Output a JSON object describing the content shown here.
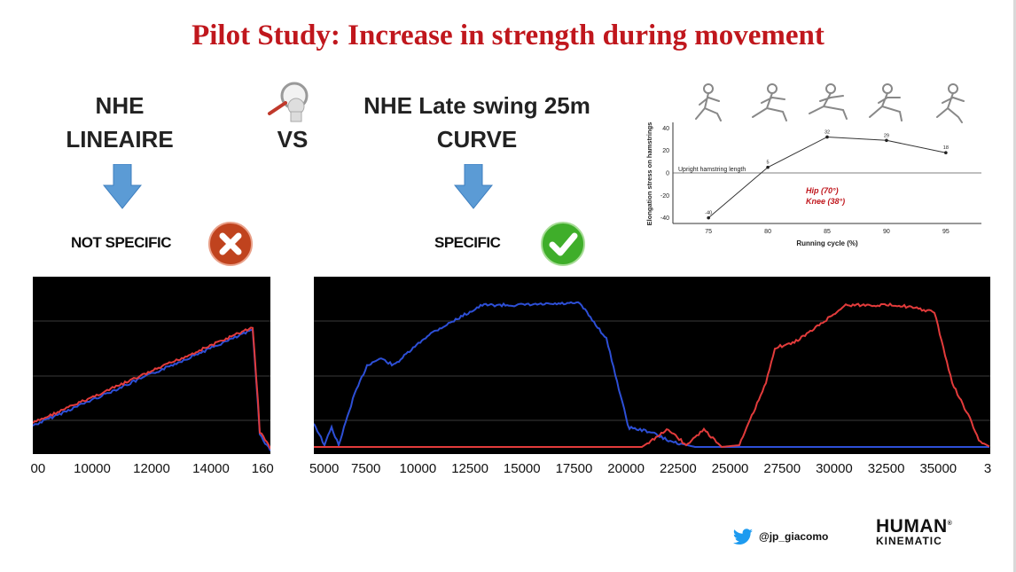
{
  "title": "Pilot Study: Increase in strength during movement",
  "left": {
    "label_line1": "NHE",
    "label_line2": "LINEAIRE",
    "verdict": "NOT SPECIFIC",
    "verdict_icon": "cross-circle-icon",
    "verdict_color": "#c0431e"
  },
  "vs": "VS",
  "right": {
    "label_line1": "NHE Late swing 25m",
    "label_line2": "CURVE",
    "verdict": "SPECIFIC",
    "verdict_icon": "check-circle-icon",
    "verdict_color": "#3fae2a"
  },
  "arrow_color": "#5b9bd5",
  "figure": {
    "ylabel": "Elongation stress on hamstrings",
    "xlabel": "Running cycle (%)",
    "reference_label": "Upright hamstring length",
    "annotation_line1": "Hip (70°)",
    "annotation_line2": "Knee (38°)",
    "y_ticks": [
      "40",
      "20",
      "0",
      "-20",
      "-40"
    ],
    "x_ticks": [
      "75",
      "80",
      "85",
      "90",
      "95"
    ],
    "chart_data": {
      "type": "line",
      "x": [
        75,
        80,
        85,
        90,
        95
      ],
      "values": [
        -40,
        5,
        32,
        29,
        18
      ],
      "point_labels": [
        "-40",
        "5",
        "32",
        "29",
        "18"
      ],
      "ylim": [
        -45,
        45
      ],
      "xlim": [
        72,
        98
      ]
    }
  },
  "chart_left": {
    "x_ticks": [
      "00",
      "10000",
      "12000",
      "14000",
      "160"
    ],
    "chart_data": {
      "type": "line",
      "x_range": [
        8000,
        16200
      ],
      "series": [
        {
          "name": "red",
          "color": "#e23b3b"
        },
        {
          "name": "blue",
          "color": "#2d4fd6"
        }
      ]
    }
  },
  "chart_right": {
    "x_ticks": [
      "5000",
      "7500",
      "10000",
      "12500",
      "15000",
      "17500",
      "20000",
      "22500",
      "25000",
      "27500",
      "30000",
      "32500",
      "35000",
      "3"
    ],
    "chart_data": {
      "type": "line",
      "x_range": [
        4500,
        37500
      ],
      "series": [
        {
          "name": "blue",
          "color": "#2d4fd6"
        },
        {
          "name": "red",
          "color": "#e23b3b"
        }
      ]
    }
  },
  "footer": {
    "twitter_handle": "@jp_giacomo",
    "brand_line1": "HUMAN",
    "brand_line2": "KINEMATIC",
    "registered": "®"
  }
}
